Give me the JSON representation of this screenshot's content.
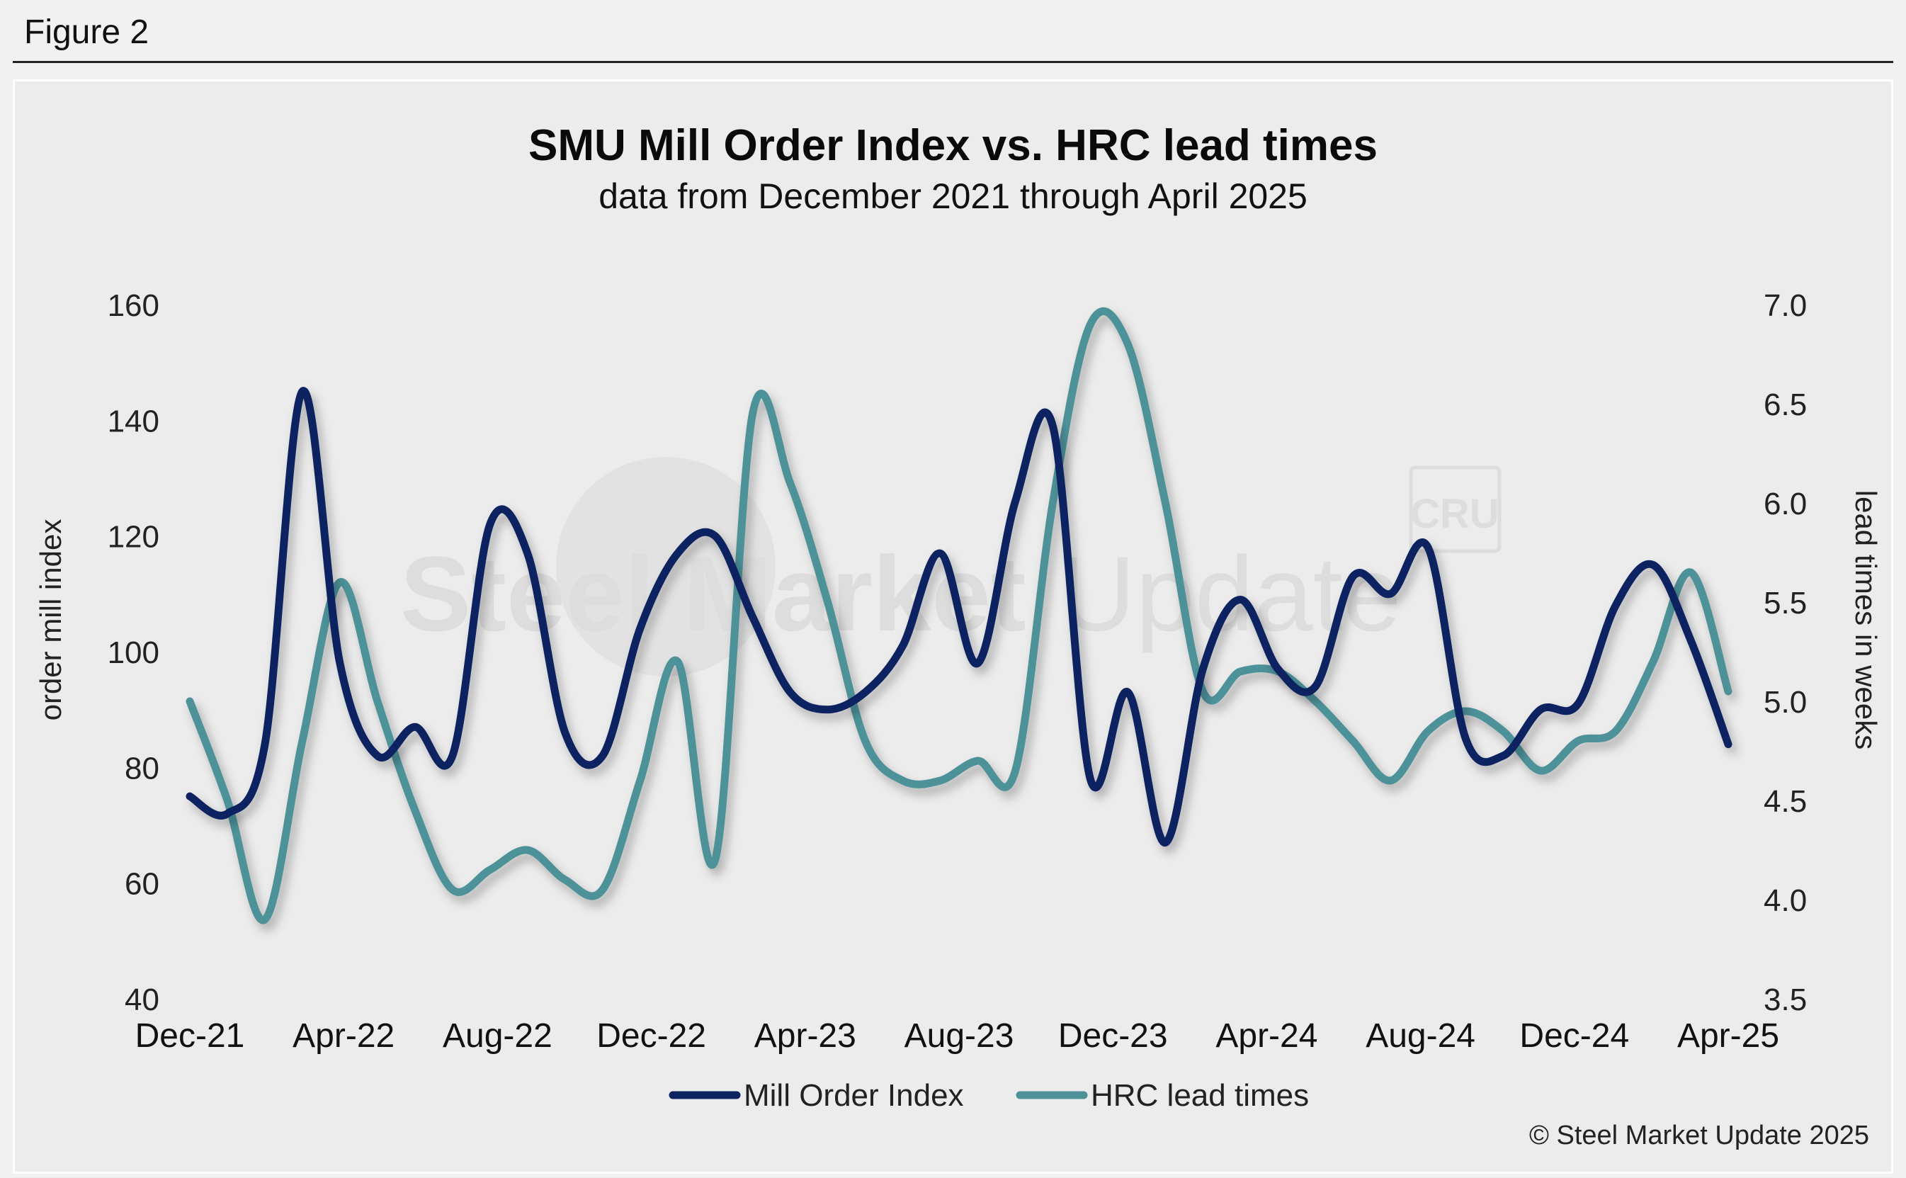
{
  "figure_label": "Figure 2",
  "copyright": "© Steel Market Update 2025",
  "watermark": {
    "text_bold": "Steel Market",
    "text_light": "Update",
    "badge": "CRU"
  },
  "colors": {
    "mill_order": "#0d2461",
    "hrc": "#4e9199",
    "background": "#ececec"
  },
  "chart_data": {
    "type": "line",
    "title": "SMU Mill Order Index vs. HRC lead times",
    "subtitle": "data from December 2021 through April 2025",
    "xlabel": "",
    "ylabel": "order mill index",
    "y2label": "lead times in weeks",
    "ylim": [
      40,
      160
    ],
    "y2lim": [
      3.5,
      7.0
    ],
    "yticks": [
      "40",
      "60",
      "80",
      "100",
      "120",
      "140",
      "160"
    ],
    "y2ticks": [
      "3.5",
      "4.0",
      "4.5",
      "5.0",
      "5.5",
      "6.0",
      "6.5",
      "7.0"
    ],
    "x_tick_labels": [
      "Dec-21",
      "Apr-22",
      "Aug-22",
      "Dec-22",
      "Apr-23",
      "Aug-23",
      "Dec-23",
      "Apr-24",
      "Aug-24",
      "Dec-24",
      "Apr-25"
    ],
    "legend_position": "bottom",
    "series": [
      {
        "name": "Mill Order Index",
        "axis": "left",
        "values": [
          75,
          72,
          84,
          145,
          98,
          82,
          87,
          82,
          122,
          117,
          86,
          82,
          104,
          117,
          120,
          106,
          93,
          90,
          93,
          101,
          117,
          98,
          126,
          139,
          78,
          93,
          67,
          97,
          109,
          97,
          94,
          113,
          110,
          118,
          85,
          82,
          90,
          91,
          108,
          115,
          102,
          84
        ]
      },
      {
        "name": "HRC lead times",
        "axis": "right",
        "values": [
          5.0,
          4.5,
          3.9,
          4.8,
          5.6,
          5.0,
          4.45,
          4.05,
          4.15,
          4.25,
          4.1,
          4.05,
          4.6,
          5.2,
          4.2,
          6.45,
          6.1,
          5.5,
          4.8,
          4.6,
          4.6,
          4.7,
          4.65,
          6.0,
          6.9,
          6.8,
          6.0,
          5.05,
          5.15,
          5.15,
          5.0,
          4.8,
          4.6,
          4.85,
          4.95,
          4.85,
          4.65,
          4.8,
          4.85,
          5.2,
          5.65,
          5.05
        ]
      }
    ]
  }
}
